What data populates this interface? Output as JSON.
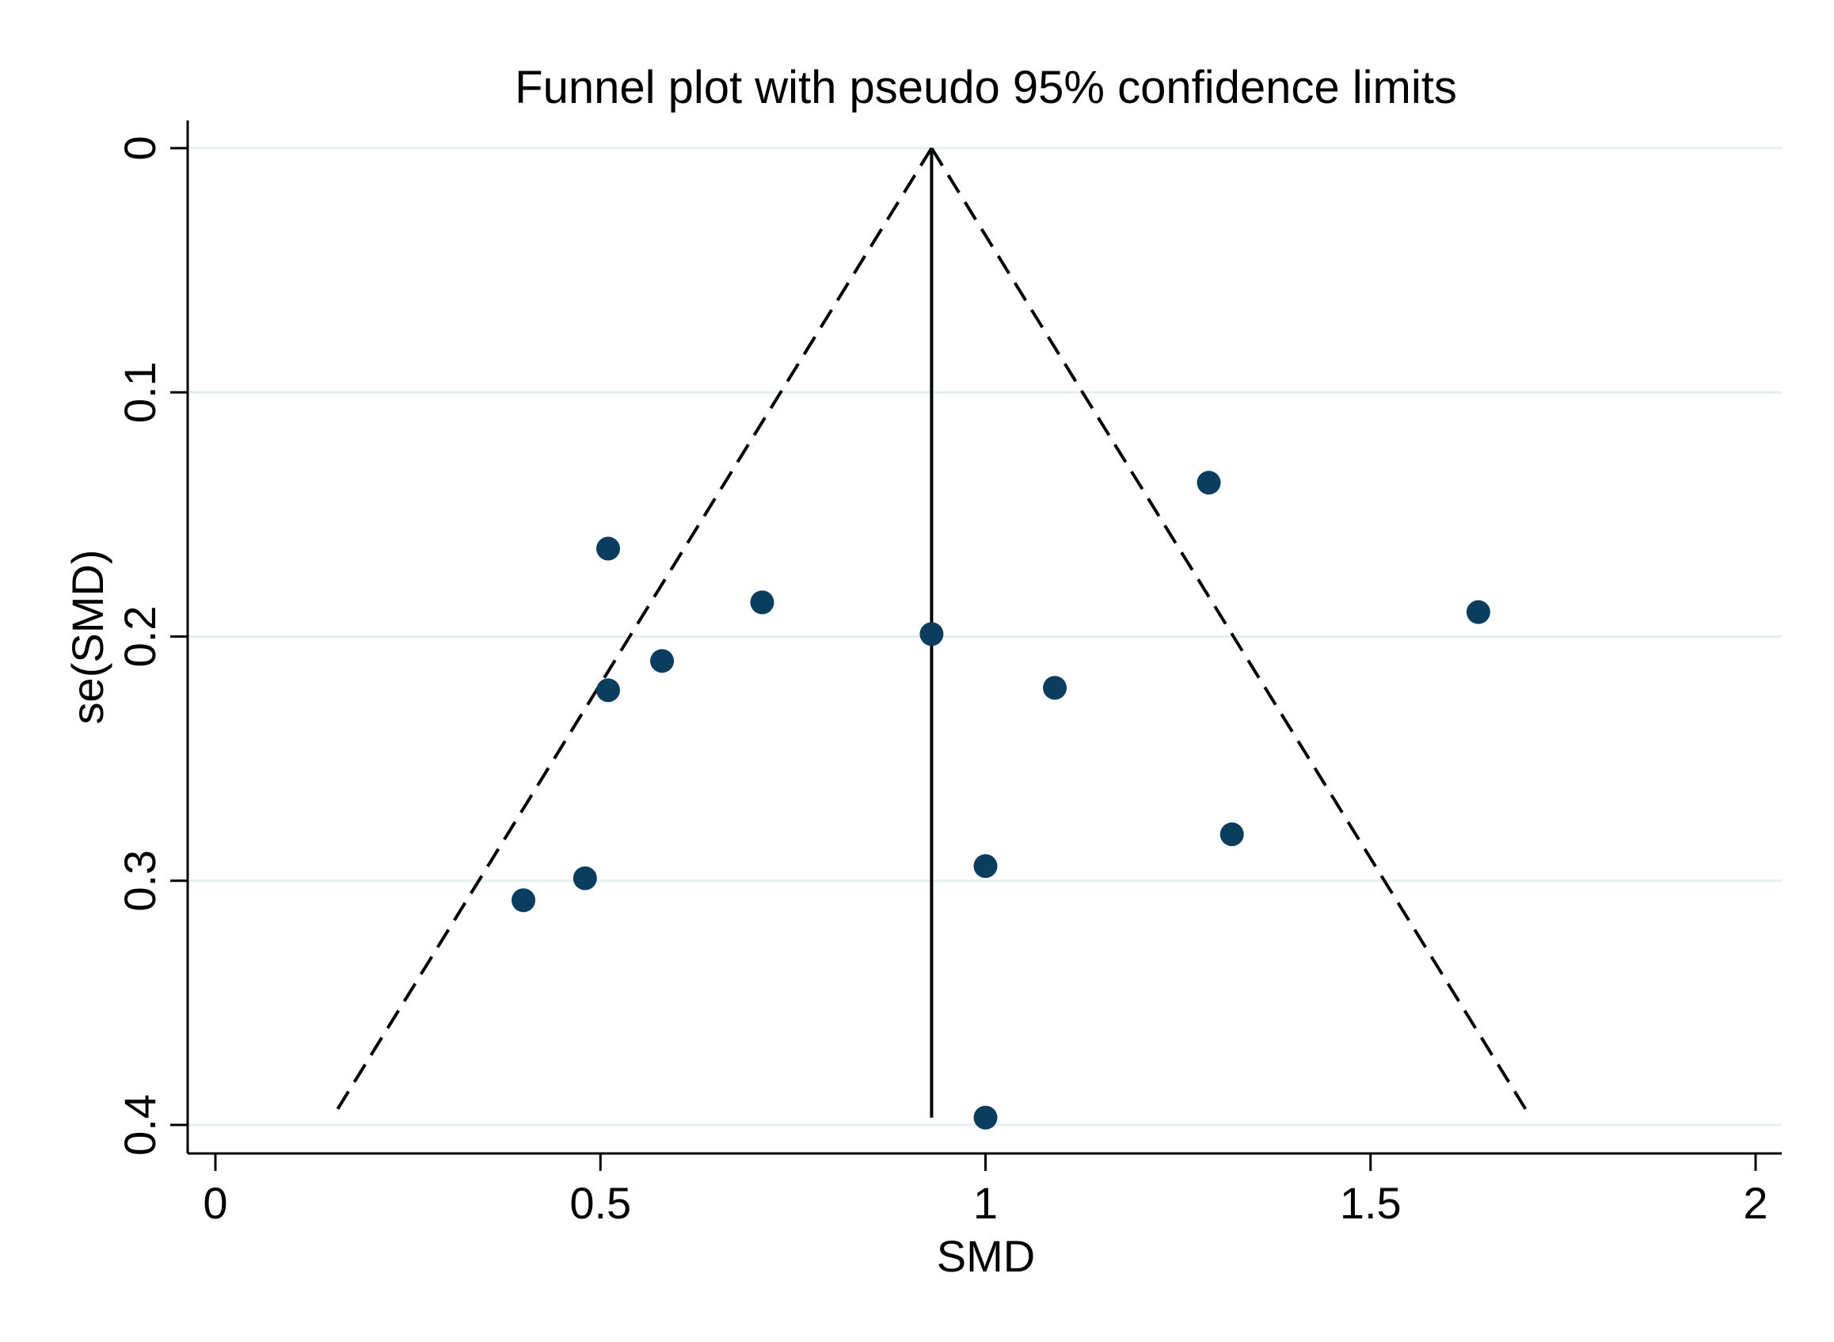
{
  "chart_data": {
    "type": "scatter",
    "title": "Funnel plot with pseudo 95% confidence limits",
    "xlabel": "SMD",
    "ylabel": "se(SMD)",
    "xlim": [
      -0.04,
      2.04
    ],
    "ylim": [
      0,
      0.41
    ],
    "y_inverted": true,
    "x_ticks": [
      0,
      0.5,
      1,
      1.5,
      2
    ],
    "x_tick_labels": [
      "0",
      "0.5",
      "1",
      "1.5",
      "2"
    ],
    "y_ticks": [
      0,
      0.1,
      0.2,
      0.3,
      0.4
    ],
    "y_tick_labels": [
      "0",
      "0.1",
      "0.2",
      "0.3",
      "0.4"
    ],
    "gridlines": "horizontal",
    "pooled_estimate": 0.93,
    "se_max": 0.397,
    "confidence_level_z": 1.96,
    "points": [
      {
        "x": 0.51,
        "y": 0.164
      },
      {
        "x": 0.71,
        "y": 0.186
      },
      {
        "x": 0.93,
        "y": 0.199
      },
      {
        "x": 0.58,
        "y": 0.21
      },
      {
        "x": 0.51,
        "y": 0.222
      },
      {
        "x": 1.09,
        "y": 0.221
      },
      {
        "x": 1.29,
        "y": 0.137
      },
      {
        "x": 1.64,
        "y": 0.19
      },
      {
        "x": 1.32,
        "y": 0.281
      },
      {
        "x": 1.0,
        "y": 0.294
      },
      {
        "x": 0.48,
        "y": 0.299
      },
      {
        "x": 0.4,
        "y": 0.308
      },
      {
        "x": 1.0,
        "y": 0.397
      }
    ],
    "colors": {
      "point": "#0b3d5e",
      "grid": "#e6efef",
      "axis": "#000000",
      "line": "#000000",
      "background": "#ffffff"
    }
  }
}
